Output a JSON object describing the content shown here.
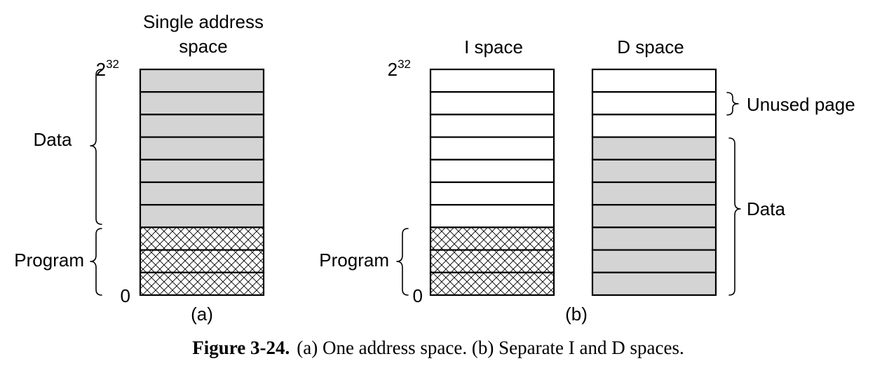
{
  "colors": {
    "data_fill": "#d4d4d4",
    "unused_fill": "#ffffff",
    "stroke": "#000000"
  },
  "panel_a": {
    "title_line1": "Single address",
    "title_line2": "space",
    "top_base": "2",
    "top_exp": "32",
    "bottom_label": "0",
    "data_label": "Data",
    "program_label": "Program",
    "caption": "(a)",
    "pages": [
      "data",
      "data",
      "data",
      "data",
      "data",
      "data",
      "data",
      "program",
      "program",
      "program"
    ]
  },
  "panel_b": {
    "i_space": {
      "title": "I space",
      "top_base": "2",
      "top_exp": "32",
      "bottom_label": "0",
      "program_label": "Program",
      "pages": [
        "unused",
        "unused",
        "unused",
        "unused",
        "unused",
        "unused",
        "unused",
        "program",
        "program",
        "program"
      ]
    },
    "d_space": {
      "title": "D space",
      "unused_label": "Unused page",
      "data_label": "Data",
      "pages": [
        "unused",
        "unused",
        "unused",
        "data",
        "data",
        "data",
        "data",
        "data",
        "data",
        "data"
      ]
    },
    "caption": "(b)"
  },
  "figure_caption": {
    "label": "Figure 3-24.",
    "text": "(a) One address space. (b) Separate I and D spaces."
  }
}
